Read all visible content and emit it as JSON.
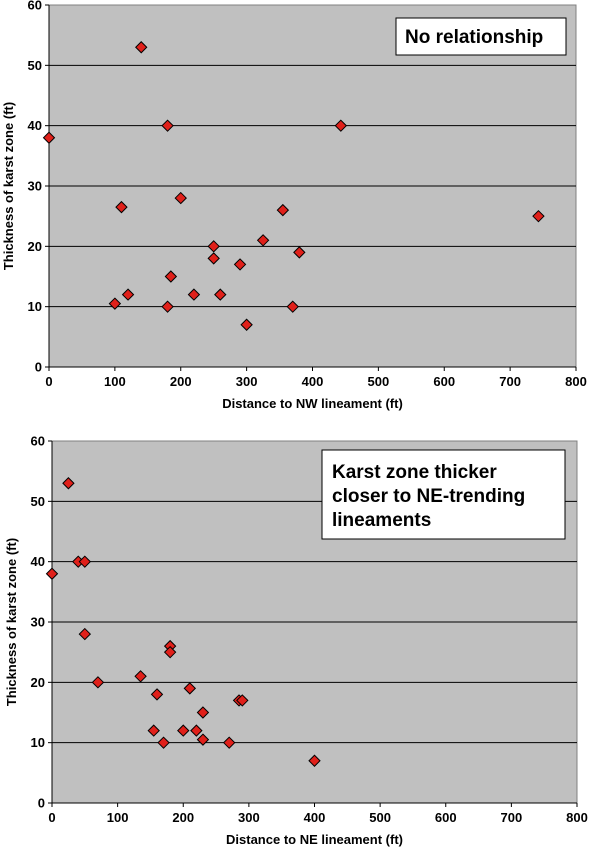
{
  "chart_data": [
    {
      "type": "scatter",
      "title": "",
      "xlabel": "Distance to NW lineament (ft)",
      "ylabel": "Thickness of karst zone (ft)",
      "xlim": [
        0,
        800
      ],
      "ylim": [
        0,
        60
      ],
      "xticks": [
        "0",
        "100",
        "200",
        "300",
        "400",
        "500",
        "600",
        "700",
        "800"
      ],
      "yticks": [
        "0",
        "10",
        "20",
        "30",
        "40",
        "50",
        "60"
      ],
      "grid": "horizontal",
      "background_color": "#c0c0c0",
      "marker_color": "#e0201a",
      "annotation": [
        "No relationship"
      ],
      "points": [
        {
          "x": 0,
          "y": 38
        },
        {
          "x": 140,
          "y": 53
        },
        {
          "x": 180,
          "y": 40
        },
        {
          "x": 443,
          "y": 40
        },
        {
          "x": 110,
          "y": 26.5
        },
        {
          "x": 200,
          "y": 28
        },
        {
          "x": 743,
          "y": 25
        },
        {
          "x": 355,
          "y": 26
        },
        {
          "x": 325,
          "y": 21
        },
        {
          "x": 250,
          "y": 20
        },
        {
          "x": 380,
          "y": 19
        },
        {
          "x": 250,
          "y": 18
        },
        {
          "x": 290,
          "y": 17
        },
        {
          "x": 185,
          "y": 15
        },
        {
          "x": 120,
          "y": 12
        },
        {
          "x": 220,
          "y": 12
        },
        {
          "x": 260,
          "y": 12
        },
        {
          "x": 100,
          "y": 10.5
        },
        {
          "x": 180,
          "y": 10
        },
        {
          "x": 370,
          "y": 10
        },
        {
          "x": 300,
          "y": 7
        }
      ]
    },
    {
      "type": "scatter",
      "title": "",
      "xlabel": "Distance to NE lineament (ft)",
      "ylabel": "Thickness of karst zone (ft)",
      "xlim": [
        0,
        800
      ],
      "ylim": [
        0,
        60
      ],
      "xticks": [
        "0",
        "100",
        "200",
        "300",
        "400",
        "500",
        "600",
        "700",
        "800"
      ],
      "yticks": [
        "0",
        "10",
        "20",
        "30",
        "40",
        "50",
        "60"
      ],
      "grid": "horizontal",
      "background_color": "#c0c0c0",
      "marker_color": "#e0201a",
      "annotation": [
        "Karst zone thicker",
        "closer to NE-trending",
        "lineaments"
      ],
      "points": [
        {
          "x": 0,
          "y": 38
        },
        {
          "x": 25,
          "y": 53
        },
        {
          "x": 40,
          "y": 40
        },
        {
          "x": 50,
          "y": 40
        },
        {
          "x": 50,
          "y": 28
        },
        {
          "x": 180,
          "y": 26
        },
        {
          "x": 180,
          "y": 25
        },
        {
          "x": 135,
          "y": 21
        },
        {
          "x": 70,
          "y": 20
        },
        {
          "x": 210,
          "y": 19
        },
        {
          "x": 160,
          "y": 18
        },
        {
          "x": 285,
          "y": 17
        },
        {
          "x": 290,
          "y": 17
        },
        {
          "x": 230,
          "y": 15
        },
        {
          "x": 155,
          "y": 12
        },
        {
          "x": 200,
          "y": 12
        },
        {
          "x": 220,
          "y": 12
        },
        {
          "x": 230,
          "y": 10.5
        },
        {
          "x": 170,
          "y": 10
        },
        {
          "x": 270,
          "y": 10
        },
        {
          "x": 400,
          "y": 7
        }
      ]
    }
  ]
}
